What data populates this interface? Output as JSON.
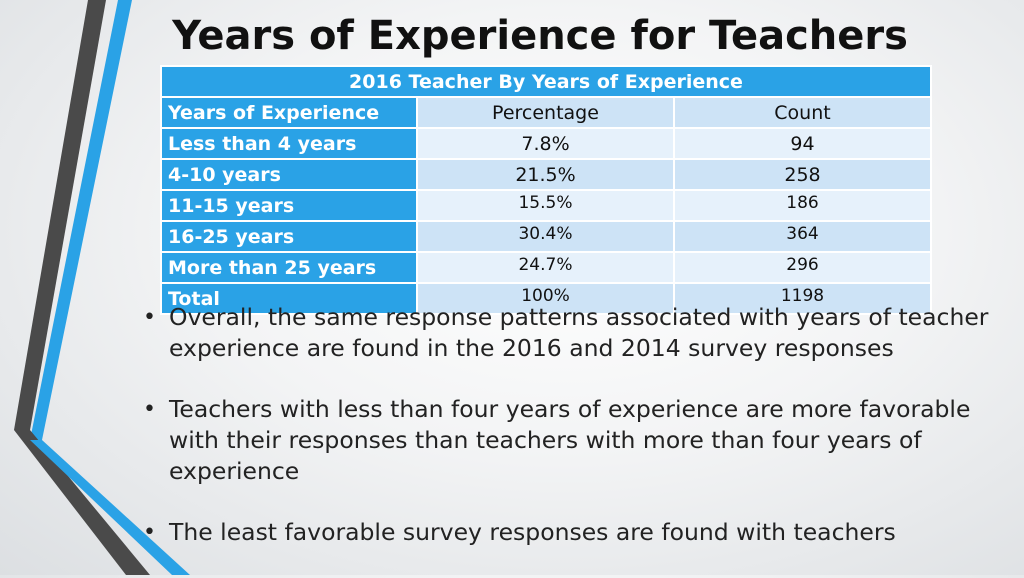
{
  "slide": {
    "title": "Years of Experience for Teachers"
  },
  "table": {
    "caption": "2016  Teacher By Years of Experience",
    "headers": [
      "Years of Experience",
      "Percentage",
      "Count"
    ],
    "rows": [
      {
        "label": "Less than 4 years",
        "percentage": "7.8%",
        "count": "94"
      },
      {
        "label": "4-10 years",
        "percentage": "21.5%",
        "count": "258"
      },
      {
        "label": "11-15 years",
        "percentage": "15.5%",
        "count": "186"
      },
      {
        "label": "16-25 years",
        "percentage": "30.4%",
        "count": "364"
      },
      {
        "label": "More than 25 years",
        "percentage": "24.7%",
        "count": "296"
      },
      {
        "label": "Total",
        "percentage": "100%",
        "count": "1198"
      }
    ]
  },
  "bullets": [
    "Overall, the same response patterns associated with years of teacher experience are found in the 2016 and 2014 survey responses",
    "Teachers with less than four years of experience are more favorable with their responses than teachers with more than four years of experience",
    "The least favorable survey responses are found with teachers"
  ],
  "bullet_symbol": "•",
  "colors": {
    "accent_blue": "#2aa2e6",
    "header_light": "#cde3f6",
    "row_light": "#e6f1fb",
    "deco_dark": "#4a4a4a"
  }
}
